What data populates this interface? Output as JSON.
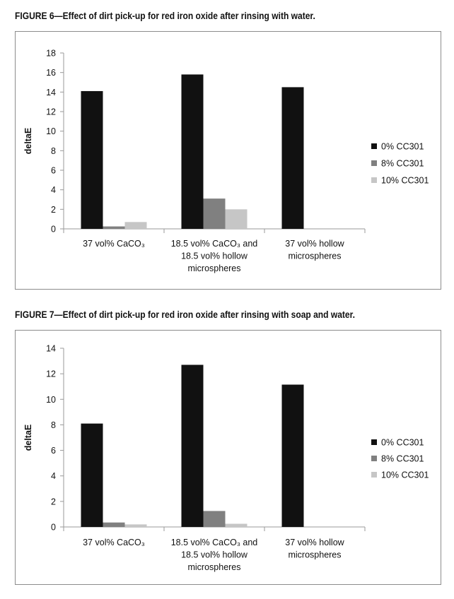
{
  "figures": [
    {
      "title": "FIGURE 6—Effect of dirt pick-up for red iron oxide after rinsing with water."
    },
    {
      "title": "FIGURE 7—Effect of dirt pick-up for red iron oxide after rinsing with soap and water."
    }
  ],
  "chart_data": [
    {
      "type": "bar",
      "ylabel": "deltaE",
      "xlabel": "",
      "ylim": [
        0,
        18
      ],
      "yticks": [
        0,
        2,
        4,
        6,
        8,
        10,
        12,
        14,
        16,
        18
      ],
      "grid": false,
      "legend_position": "right",
      "categories": [
        [
          "37 vol% CaCO₃"
        ],
        [
          "18.5 vol% CaCO₃ and",
          "18.5 vol% hollow",
          "microspheres"
        ],
        [
          "37 vol% hollow",
          "microspheres"
        ]
      ],
      "series": [
        {
          "name": "0% CC301",
          "color": "#111111",
          "values": [
            14.1,
            15.8,
            14.5
          ]
        },
        {
          "name": "8% CC301",
          "color": "#808080",
          "values": [
            0.25,
            3.1,
            0
          ]
        },
        {
          "name": "10% CC301",
          "color": "#c6c6c6",
          "values": [
            0.7,
            2.0,
            0
          ]
        }
      ]
    },
    {
      "type": "bar",
      "ylabel": "deltaE",
      "xlabel": "",
      "ylim": [
        0,
        14
      ],
      "yticks": [
        0,
        2,
        4,
        6,
        8,
        10,
        12,
        14
      ],
      "grid": false,
      "legend_position": "right",
      "categories": [
        [
          "37 vol% CaCO₃"
        ],
        [
          "18.5 vol% CaCO₃ and",
          "18.5 vol% hollow",
          "microspheres"
        ],
        [
          "37 vol% hollow",
          "microspheres"
        ]
      ],
      "series": [
        {
          "name": "0% CC301",
          "color": "#111111",
          "values": [
            8.1,
            12.7,
            11.15
          ]
        },
        {
          "name": "8% CC301",
          "color": "#808080",
          "values": [
            0.35,
            1.25,
            0
          ]
        },
        {
          "name": "10% CC301",
          "color": "#c6c6c6",
          "values": [
            0.2,
            0.25,
            0
          ]
        }
      ]
    }
  ]
}
